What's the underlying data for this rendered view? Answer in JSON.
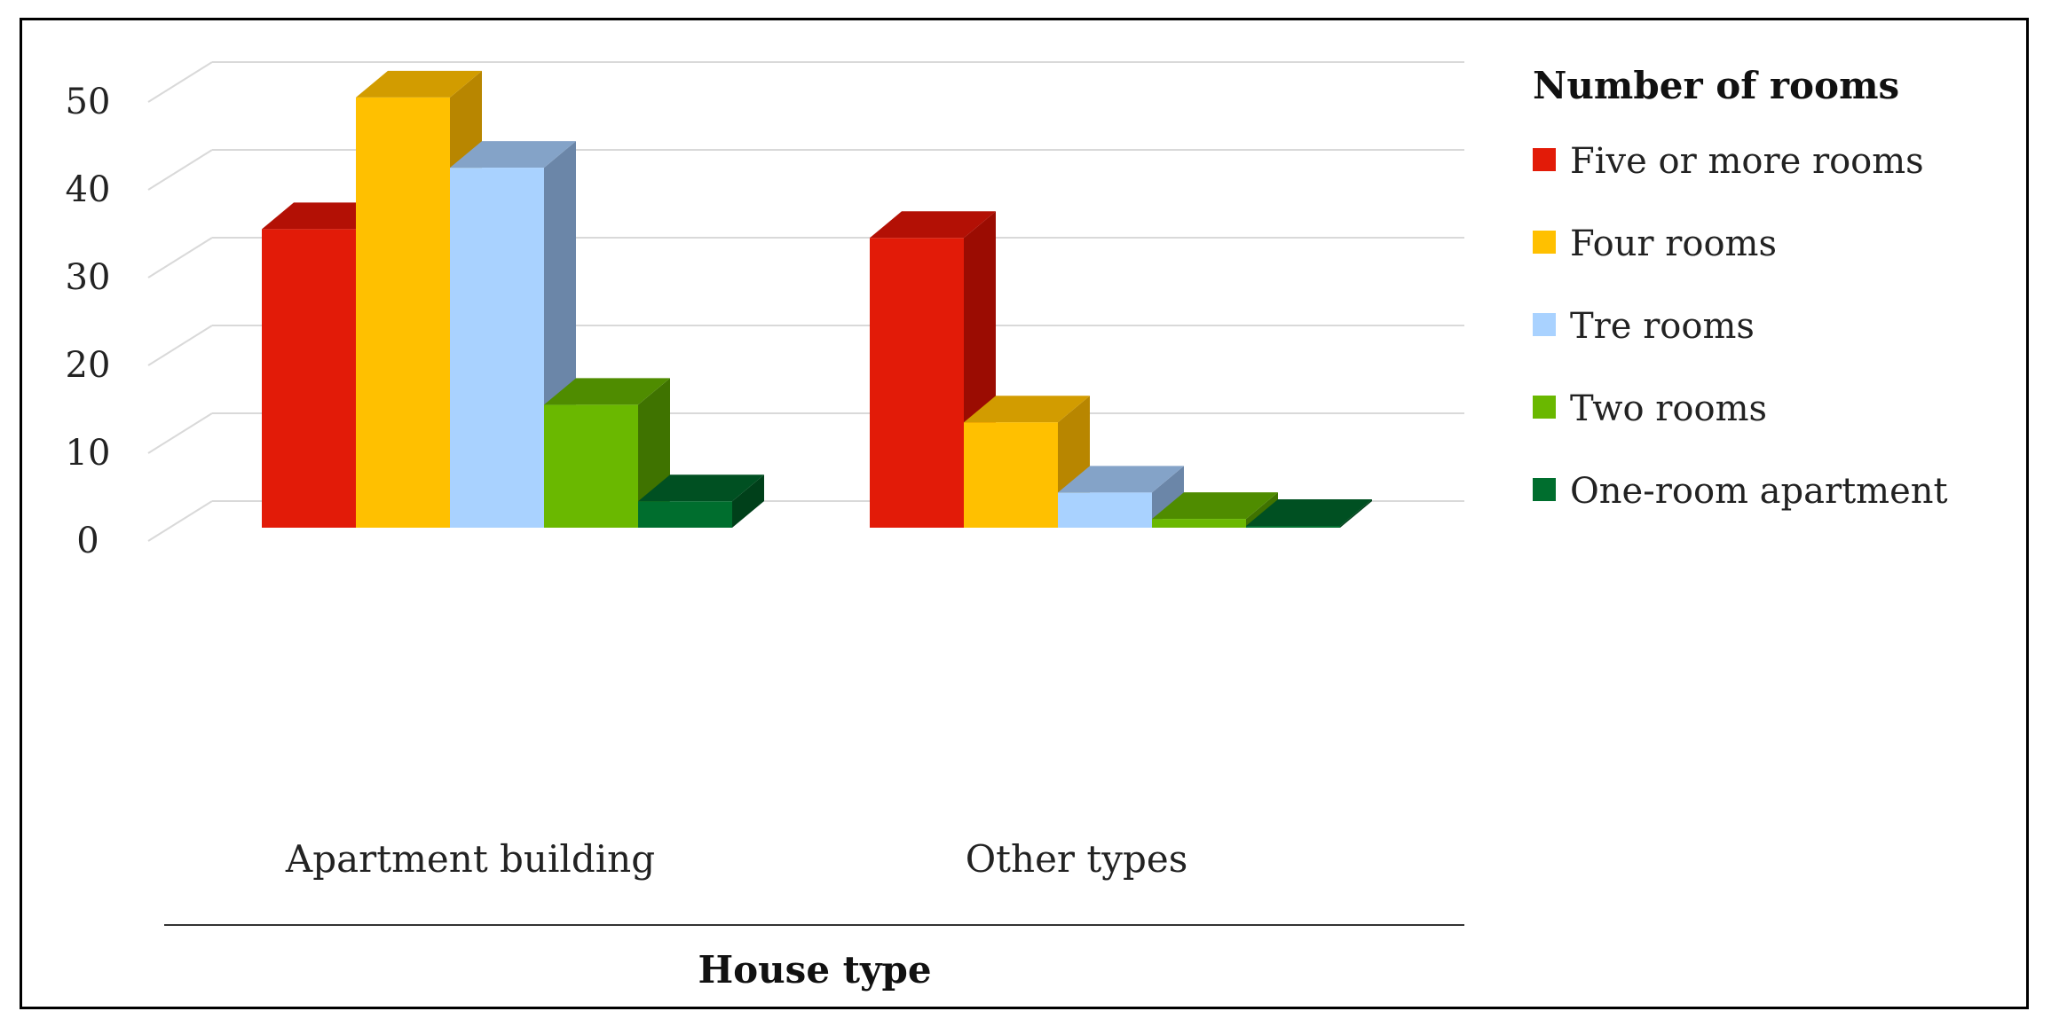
{
  "chart_data": {
    "type": "bar",
    "title": "",
    "xlabel": "House type",
    "ylabel": "",
    "ylim": [
      0,
      50
    ],
    "yticks": [
      0,
      10,
      20,
      30,
      40,
      50
    ],
    "grid": true,
    "legend_title": "Number of rooms",
    "legend_position": "right",
    "categories": [
      "Apartment building",
      "Other types"
    ],
    "series": [
      {
        "name": "Five or more rooms",
        "values": [
          34,
          33
        ],
        "color": "#e21b08",
        "side": "#9b0c02",
        "top": "#b31005"
      },
      {
        "name": "Four rooms",
        "values": [
          49,
          12
        ],
        "color": "#ffc000",
        "side": "#b88600",
        "top": "#d29c00"
      },
      {
        "name": "Tre rooms",
        "values": [
          41,
          4
        ],
        "color": "#a9d2ff",
        "side": "#6b86a8",
        "top": "#84a3c8"
      },
      {
        "name": "Two rooms",
        "values": [
          14,
          1
        ],
        "color": "#6ab800",
        "side": "#3f7300",
        "top": "#4f8c00"
      },
      {
        "name": "One-room apartment",
        "values": [
          3,
          0.2
        ],
        "color": "#006e2e",
        "side": "#00401a",
        "top": "#005022"
      }
    ]
  }
}
